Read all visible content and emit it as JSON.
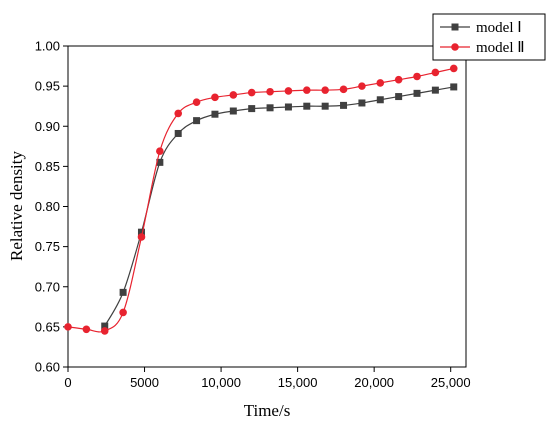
{
  "chart_data": {
    "type": "line",
    "title": "",
    "xlabel": "Time/s",
    "ylabel": "Relative density",
    "xlim": [
      0,
      26000
    ],
    "ylim": [
      0.6,
      1.0
    ],
    "xticks": [
      0,
      5000,
      10000,
      15000,
      20000,
      25000
    ],
    "xtick_labels": [
      "0",
      "5000",
      "10,000",
      "15,000",
      "20,000",
      "25,000"
    ],
    "yticks": [
      0.6,
      0.65,
      0.7,
      0.75,
      0.8,
      0.85,
      0.9,
      0.95,
      1.0
    ],
    "ytick_labels": [
      "0.60",
      "0.65",
      "0.70",
      "0.75",
      "0.80",
      "0.85",
      "0.90",
      "0.95",
      "1.00"
    ],
    "grid": false,
    "legend_position": "top-right",
    "series": [
      {
        "name": "model Ⅰ",
        "color": "#404040",
        "marker": "square",
        "x": [
          2400,
          3600,
          4800,
          6000,
          7200,
          8400,
          9600,
          10800,
          12000,
          13200,
          14400,
          15600,
          16800,
          18000,
          19200,
          20400,
          21600,
          22800,
          24000,
          25200
        ],
        "y": [
          0.651,
          0.693,
          0.768,
          0.855,
          0.891,
          0.907,
          0.915,
          0.919,
          0.922,
          0.923,
          0.924,
          0.925,
          0.925,
          0.926,
          0.929,
          0.933,
          0.937,
          0.941,
          0.945,
          0.949
        ]
      },
      {
        "name": "model Ⅱ",
        "color": "#e8232f",
        "marker": "circle",
        "x": [
          0,
          1200,
          2400,
          3600,
          4800,
          6000,
          7200,
          8400,
          9600,
          10800,
          12000,
          13200,
          14400,
          15600,
          16800,
          18000,
          19200,
          20400,
          21600,
          22800,
          24000,
          25200
        ],
        "y": [
          0.65,
          0.647,
          0.645,
          0.668,
          0.762,
          0.869,
          0.916,
          0.93,
          0.936,
          0.939,
          0.942,
          0.943,
          0.944,
          0.945,
          0.945,
          0.946,
          0.95,
          0.954,
          0.958,
          0.962,
          0.967,
          0.972
        ]
      }
    ]
  }
}
